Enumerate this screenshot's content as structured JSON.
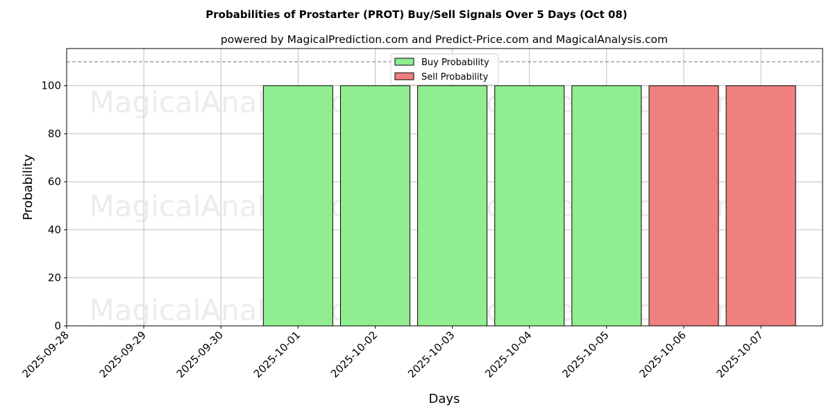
{
  "chart_data": {
    "type": "bar",
    "title": "Probabilities of Prostarter (PROT) Buy/Sell Signals Over 5 Days (Oct 08)",
    "subtitle": "powered by MagicalPrediction.com and Predict-Price.com and MagicalAnalysis.com",
    "xlabel": "Days",
    "ylabel": "Probability",
    "ylim": [
      0,
      115.5
    ],
    "xlim_days": [
      0,
      9.8
    ],
    "yticks": [
      0,
      20,
      40,
      60,
      80,
      100
    ],
    "reference_line": 110,
    "grid": true,
    "legend_placement": "top-center",
    "categories": [
      "2025-09-28",
      "2025-09-29",
      "2025-09-30",
      "2025-10-01",
      "2025-10-02",
      "2025-10-03",
      "2025-10-04",
      "2025-10-05",
      "2025-10-06",
      "2025-10-07"
    ],
    "series": [
      {
        "name": "Buy Probability",
        "color": "#90ee90",
        "values": [
          null,
          null,
          null,
          100,
          100,
          100,
          100,
          100,
          0,
          0
        ]
      },
      {
        "name": "Sell Probability",
        "color": "#f08080",
        "values": [
          null,
          null,
          null,
          0,
          0,
          0,
          0,
          0,
          100,
          100
        ]
      }
    ],
    "watermarks": [
      "MagicalAnalysis.com",
      "MagicalPrediction.com"
    ]
  }
}
